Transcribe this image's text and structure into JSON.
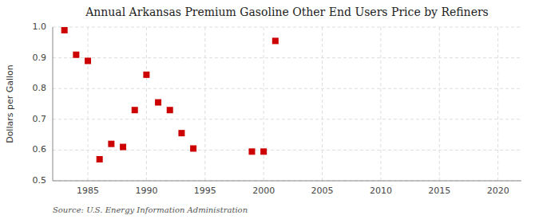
{
  "chart_data": {
    "type": "scatter",
    "title": "Annual Arkansas Premium Gasoline Other End Users Price by Refiners",
    "ylabel": "Dollars per Gallon",
    "source": "Source: U.S. Energy Information Administration",
    "x": [
      1983,
      1984,
      1985,
      1986,
      1987,
      1988,
      1989,
      1990,
      1991,
      1992,
      1993,
      1994,
      1999,
      2000,
      2001
    ],
    "values": [
      0.99,
      0.91,
      0.89,
      0.57,
      0.62,
      0.61,
      0.73,
      0.845,
      0.755,
      0.73,
      0.655,
      0.605,
      0.595,
      0.595,
      0.955
    ],
    "color": "#cc0000",
    "marker": "square",
    "xlim": [
      1982,
      2022
    ],
    "ylim": [
      0.5,
      1.0
    ],
    "xticks": [
      1985,
      1990,
      1995,
      2000,
      2005,
      2010,
      2015,
      2020
    ],
    "yticks": [
      0.5,
      0.6,
      0.7,
      0.8,
      0.9,
      {
        "value": 1.0,
        "label": "1.0"
      }
    ],
    "grid": true
  }
}
